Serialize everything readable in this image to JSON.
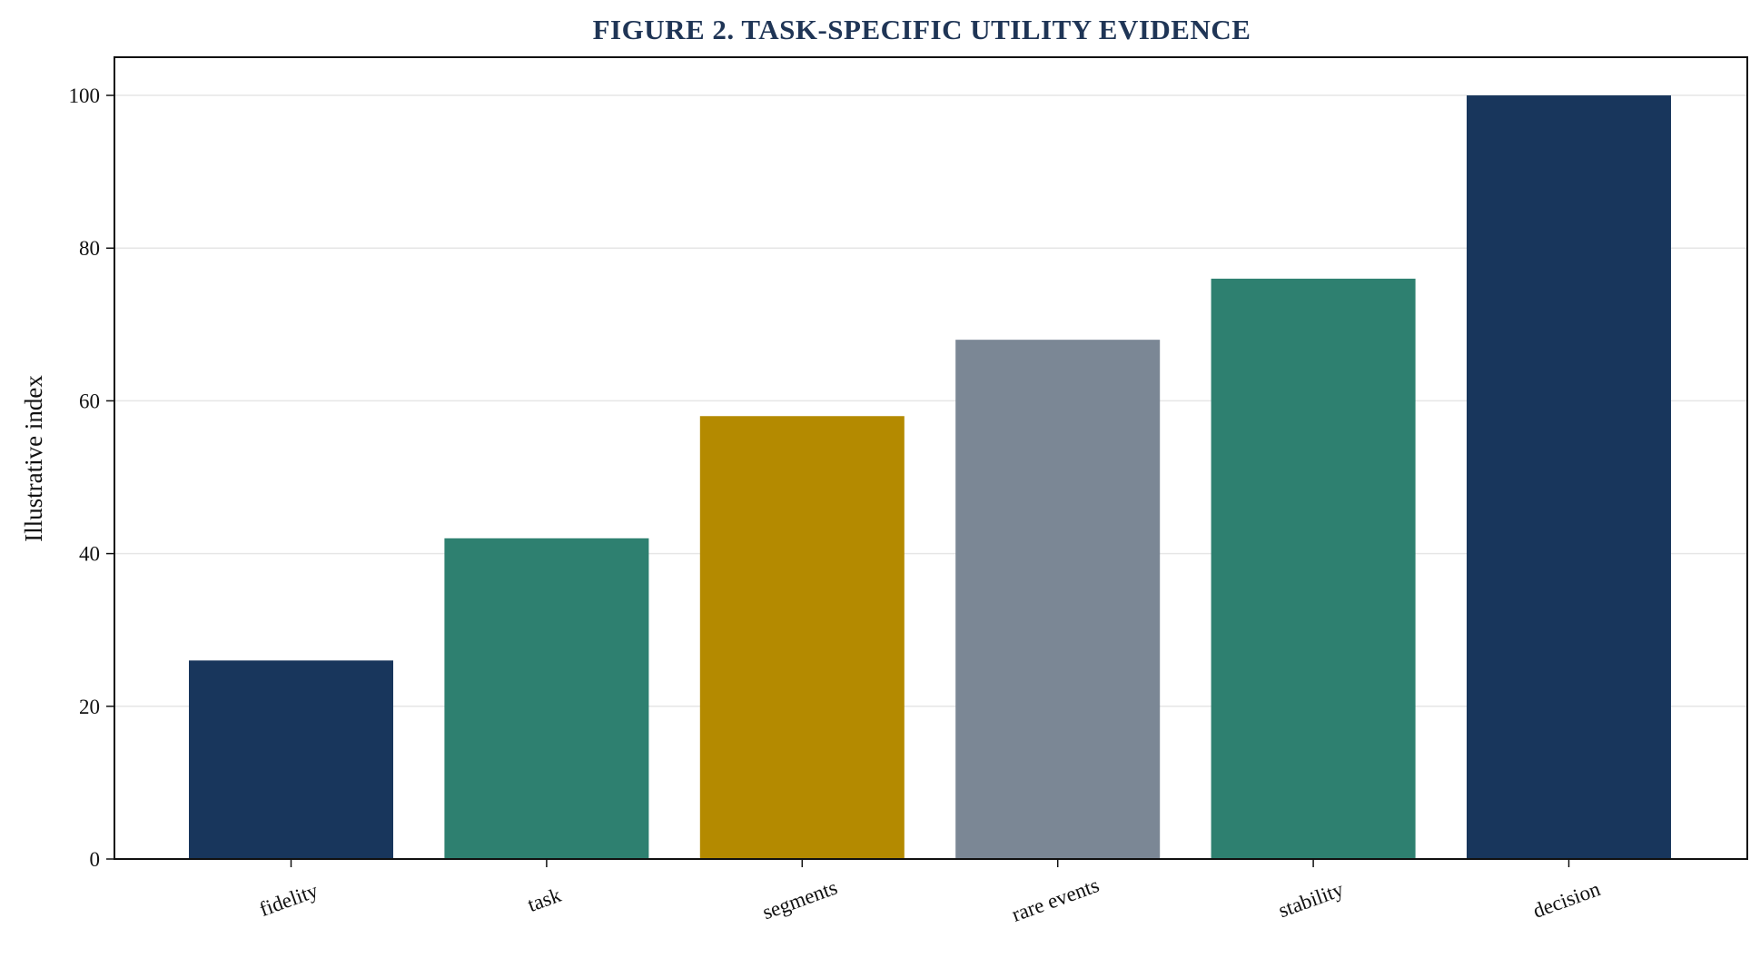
{
  "chart_data": {
    "type": "bar",
    "title": "FIGURE 2. TASK-SPECIFIC UTILITY EVIDENCE",
    "xlabel": "",
    "ylabel": "Illustrative index",
    "categories": [
      "fidelity",
      "task",
      "segments",
      "rare events",
      "stability",
      "decision"
    ],
    "values": [
      26,
      42,
      58,
      68,
      76,
      100
    ],
    "bar_colors": [
      "#18365c",
      "#2e8070",
      "#b48a00",
      "#7b8795",
      "#2e8070",
      "#18365c"
    ],
    "ylim": [
      0,
      105
    ],
    "yticks": [
      0,
      20,
      40,
      60,
      80,
      100
    ],
    "grid": "horizontal",
    "legend": "none"
  }
}
